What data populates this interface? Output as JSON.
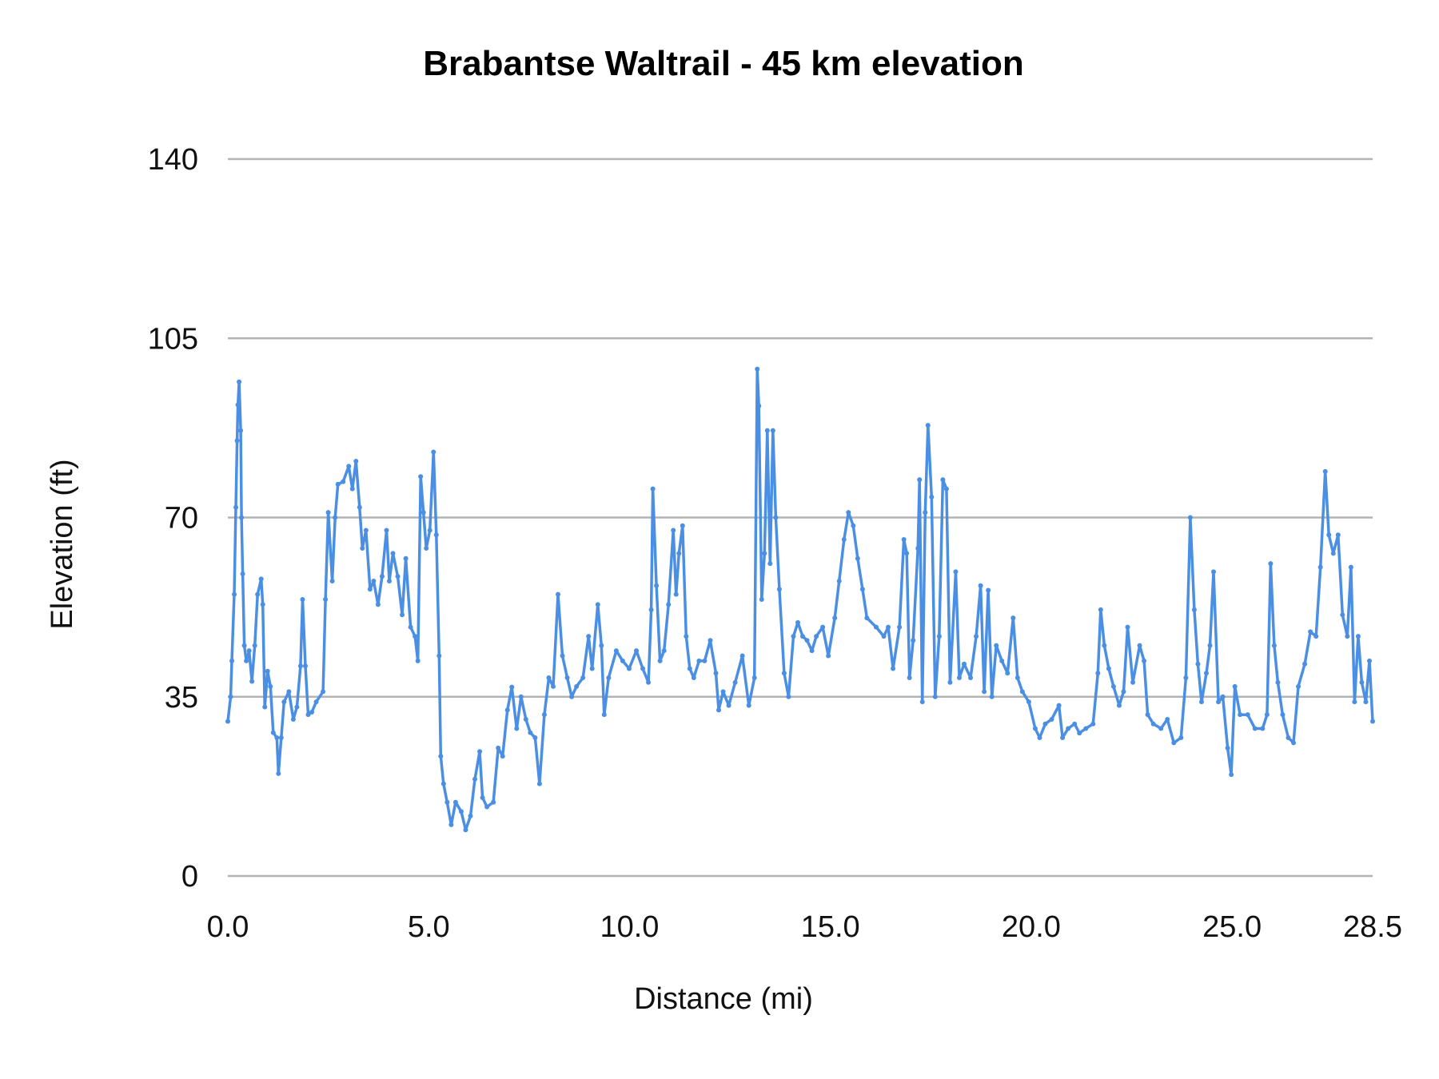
{
  "chart_data": {
    "type": "line",
    "title": "Brabantse Waltrail - 45 km elevation",
    "xlabel": "Distance (mi)",
    "ylabel": "Elevation (ft)",
    "xlim": [
      0,
      28.5
    ],
    "ylim": [
      0,
      140
    ],
    "xticks": [
      "0.0",
      "5.0",
      "10.0",
      "15.0",
      "20.0",
      "25.0",
      "28.5"
    ],
    "xtick_values": [
      0,
      5,
      10,
      15,
      20,
      25,
      28.5
    ],
    "yticks": [
      "0",
      "35",
      "70",
      "105",
      "140"
    ],
    "ytick_values": [
      0,
      35,
      70,
      105,
      140
    ],
    "grid": "horizontal",
    "legend": "none",
    "markers": true,
    "color": "#4a8fe3",
    "series": [
      {
        "x": [
          0,
          0.07,
          0.1,
          0.16,
          0.2,
          0.23,
          0.25,
          0.28,
          0.32,
          0.34,
          0.37,
          0.41,
          0.46,
          0.53,
          0.6,
          0.67,
          0.74,
          0.83,
          0.87,
          0.92,
          0.99,
          1.06,
          1.13,
          1.22,
          1.26,
          1.33,
          1.4,
          1.52,
          1.63,
          1.72,
          1.81,
          1.86,
          1.93,
          2.0,
          2.09,
          2.2,
          2.37,
          2.43,
          2.5,
          2.6,
          2.67,
          2.74,
          2.87,
          3.01,
          3.1,
          3.19,
          3.28,
          3.35,
          3.44,
          3.54,
          3.63,
          3.74,
          3.84,
          3.95,
          4.02,
          4.11,
          4.23,
          4.34,
          4.43,
          4.55,
          4.66,
          4.73,
          4.8,
          4.87,
          4.94,
          5.03,
          5.12,
          5.19,
          5.26,
          5.3,
          5.37,
          5.46,
          5.56,
          5.67,
          5.81,
          5.92,
          6.04,
          6.15,
          6.27,
          6.34,
          6.45,
          6.61,
          6.73,
          6.84,
          6.96,
          7.07,
          7.19,
          7.3,
          7.42,
          7.53,
          7.65,
          7.76,
          7.88,
          7.99,
          8.1,
          8.22,
          8.33,
          8.45,
          8.56,
          8.68,
          8.84,
          8.98,
          9.07,
          9.21,
          9.3,
          9.37,
          9.48,
          9.67,
          9.83,
          9.99,
          10.17,
          10.33,
          10.47,
          10.54,
          10.58,
          10.67,
          10.76,
          10.86,
          10.97,
          11.09,
          11.16,
          11.23,
          11.32,
          11.41,
          11.5,
          11.6,
          11.73,
          11.87,
          12.01,
          12.15,
          12.22,
          12.33,
          12.47,
          12.63,
          12.81,
          12.97,
          13.11,
          13.18,
          13.22,
          13.29,
          13.36,
          13.43,
          13.5,
          13.57,
          13.64,
          13.73,
          13.85,
          13.96,
          14.08,
          14.19,
          14.31,
          14.42,
          14.54,
          14.65,
          14.81,
          14.95,
          15.11,
          15.22,
          15.34,
          15.45,
          15.57,
          15.68,
          15.8,
          15.91,
          16.14,
          16.33,
          16.44,
          16.56,
          16.72,
          16.83,
          16.9,
          16.97,
          17.06,
          17.18,
          17.22,
          17.29,
          17.36,
          17.43,
          17.52,
          17.61,
          17.71,
          17.8,
          17.89,
          17.98,
          18.12,
          18.21,
          18.33,
          18.49,
          18.63,
          18.74,
          18.83,
          18.93,
          19.02,
          19.13,
          19.27,
          19.41,
          19.55,
          19.66,
          19.78,
          19.94,
          20.1,
          20.21,
          20.35,
          20.51,
          20.69,
          20.78,
          20.92,
          21.08,
          21.2,
          21.36,
          21.54,
          21.66,
          21.73,
          21.82,
          21.93,
          22.05,
          22.19,
          22.3,
          22.4,
          22.53,
          22.7,
          22.81,
          22.9,
          23.04,
          23.23,
          23.39,
          23.55,
          23.73,
          23.85,
          23.96,
          24.06,
          24.15,
          24.24,
          24.36,
          24.45,
          24.54,
          24.66,
          24.77,
          24.89,
          24.98,
          25.07,
          25.2,
          25.39,
          25.57,
          25.76,
          25.87,
          25.96,
          26.05,
          26.14,
          26.26,
          26.4,
          26.53,
          26.65,
          26.81,
          26.95,
          27.09,
          27.2,
          27.32,
          27.41,
          27.52,
          27.64,
          27.75,
          27.87,
          27.96,
          28.05,
          28.14,
          28.23,
          28.33,
          28.42,
          28.5
        ],
        "y": [
          30.2,
          35,
          42,
          55,
          72,
          85,
          92,
          96.5,
          87,
          70,
          59,
          45,
          42,
          44,
          38,
          45,
          55,
          58,
          53,
          33,
          40,
          37,
          28,
          27,
          20,
          27,
          34,
          36,
          30.6,
          33,
          41,
          54,
          41,
          31.5,
          32,
          34,
          36,
          54,
          71,
          57.6,
          70,
          76.5,
          77,
          80,
          75.6,
          81,
          72,
          64,
          67.5,
          56,
          57.6,
          53,
          58.5,
          67.5,
          57.6,
          63,
          58.5,
          51,
          62,
          48.6,
          46.8,
          42,
          78,
          71,
          64,
          67.5,
          82.8,
          66.6,
          43,
          23.4,
          18,
          14.4,
          10,
          14.4,
          12.6,
          9,
          11.7,
          18.9,
          24.3,
          15.3,
          13.5,
          14.4,
          25,
          23.4,
          32.4,
          36.9,
          28.8,
          35,
          30.6,
          28,
          27,
          18,
          31.5,
          38.7,
          37,
          55,
          43,
          38.7,
          35,
          37,
          38.7,
          46.8,
          40.5,
          53,
          45,
          31.5,
          38.7,
          44,
          42,
          40.5,
          44,
          40.5,
          37.8,
          52,
          75.6,
          56.7,
          42,
          44,
          53,
          67.5,
          55,
          63,
          68.4,
          46.8,
          40.5,
          38.7,
          42,
          42,
          46,
          39.6,
          32.4,
          36,
          33.3,
          37.8,
          43,
          33.3,
          38.7,
          99,
          91.8,
          54,
          63,
          87,
          61,
          87,
          70,
          56,
          39.6,
          35,
          46.8,
          49.5,
          46.8,
          46,
          44,
          46.8,
          48.6,
          43,
          50.4,
          57.6,
          65.7,
          71,
          68.4,
          62,
          56,
          50.4,
          48.6,
          46.8,
          48.6,
          40.5,
          48.6,
          65.7,
          63,
          38.7,
          46,
          64,
          77.4,
          34,
          71,
          88,
          74,
          35,
          46.8,
          77.4,
          75.6,
          37.8,
          59.4,
          38.7,
          41.4,
          38.7,
          46.8,
          56.7,
          36,
          55.8,
          35,
          45,
          42,
          39.6,
          50.4,
          38.7,
          36,
          34,
          28.8,
          27,
          29.7,
          30.6,
          33.3,
          27,
          28.8,
          29.7,
          27.9,
          28.8,
          29.7,
          39.6,
          52,
          45,
          40.5,
          37,
          33.3,
          36,
          48.6,
          37.8,
          45,
          42,
          31.5,
          29.7,
          28.8,
          30.6,
          26,
          27,
          38.7,
          70,
          52,
          41.4,
          34,
          39.6,
          45,
          59.4,
          34,
          35,
          25,
          19.8,
          37,
          31.5,
          31.5,
          28.8,
          28.8,
          31.5,
          61,
          45,
          37.8,
          31.5,
          27,
          26,
          37,
          41.4,
          47.7,
          46.8,
          60.3,
          79,
          66.6,
          63,
          66.6,
          51,
          46.8,
          60.3,
          34,
          46.8,
          37.8,
          34,
          42,
          30.2
        ]
      }
    ]
  }
}
